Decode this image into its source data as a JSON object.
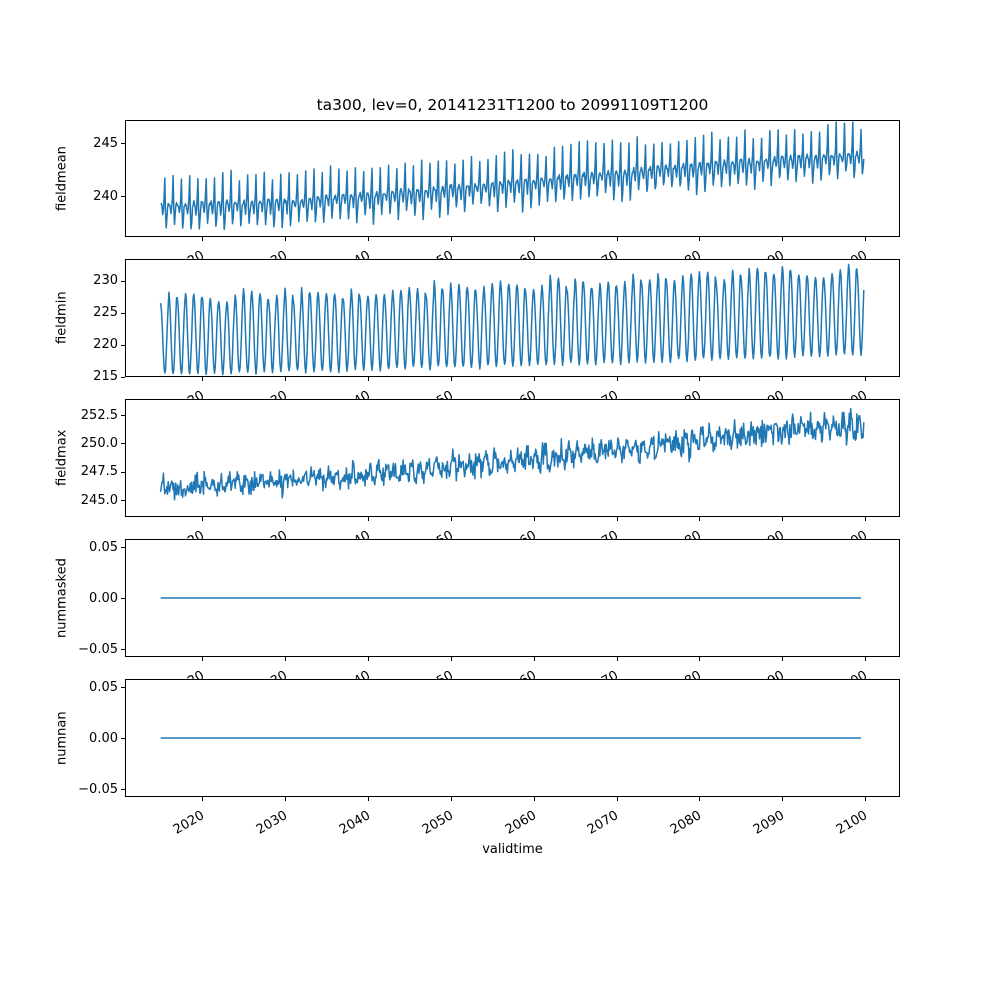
{
  "figure": {
    "title": "ta300, lev=0, 20141231T1200 to 20991109T1200",
    "background": "#ffffff",
    "line_color": "#1f77b4",
    "axis_color": "#000000"
  },
  "chart_data": [
    {
      "type": "line",
      "ylabel": "fieldmean",
      "ylim": [
        236.13,
        247.17
      ],
      "yticks": {
        "values": [
          240,
          245
        ],
        "labels": [
          "240",
          "245"
        ]
      },
      "series": {
        "name": "fieldmean",
        "color": "#1f77b4",
        "x_start": 2015.0,
        "x_end": 2099.86,
        "points_per_year": 12,
        "shape": "peakdip",
        "seed": 11,
        "noise": 0.45,
        "baseline_frac": 0.45,
        "anchors": [
          [
            2015,
            237.0,
            242.0
          ],
          [
            2030,
            237.3,
            242.4
          ],
          [
            2045,
            238.2,
            243.4
          ],
          [
            2060,
            239.2,
            244.5
          ],
          [
            2075,
            240.3,
            245.6
          ],
          [
            2090,
            241.3,
            246.4
          ],
          [
            2100,
            241.8,
            246.9
          ]
        ]
      }
    },
    {
      "type": "line",
      "ylabel": "fieldmin",
      "ylim": [
        214.95,
        233.39
      ],
      "yticks": {
        "values": [
          215,
          220,
          225,
          230
        ],
        "labels": [
          "215",
          "220",
          "225",
          "230"
        ]
      },
      "series": {
        "name": "fieldmin",
        "color": "#1f77b4",
        "x_start": 2015.0,
        "x_end": 2099.86,
        "points_per_year": 12,
        "shape": "sine",
        "seed": 23,
        "noise": 0.5,
        "anchors": [
          [
            2015,
            215.4,
            227.3
          ],
          [
            2030,
            215.9,
            227.9
          ],
          [
            2045,
            216.4,
            228.6
          ],
          [
            2060,
            216.9,
            229.4
          ],
          [
            2075,
            217.5,
            230.2
          ],
          [
            2090,
            218.2,
            231.3
          ],
          [
            2100,
            218.6,
            231.7
          ]
        ]
      }
    },
    {
      "type": "line",
      "ylabel": "fieldmax",
      "ylim": [
        243.5,
        253.91
      ],
      "yticks": {
        "values": [
          245.0,
          247.5,
          250.0,
          252.5
        ],
        "labels": [
          "245.0",
          "247.5",
          "250.0",
          "252.5"
        ]
      },
      "series": {
        "name": "fieldmax",
        "color": "#1f77b4",
        "x_start": 2015.0,
        "x_end": 2099.86,
        "points_per_year": 12,
        "shape": "noise",
        "seed": 37,
        "noise": 0.3,
        "anchors": [
          [
            2015,
            244.7,
            247.4
          ],
          [
            2030,
            245.2,
            248.1
          ],
          [
            2045,
            246.0,
            249.1
          ],
          [
            2060,
            247.0,
            250.3
          ],
          [
            2075,
            248.1,
            251.5
          ],
          [
            2090,
            249.4,
            252.9
          ],
          [
            2100,
            249.9,
            253.3
          ]
        ]
      }
    },
    {
      "type": "line",
      "ylabel": "nummasked",
      "ylim": [
        -0.0578,
        0.0578
      ],
      "yticks": {
        "values": [
          -0.05,
          0.0,
          0.05
        ],
        "labels": [
          "−0.05",
          "0.00",
          "0.05"
        ]
      },
      "series": {
        "name": "nummasked",
        "color": "#1f77b4",
        "x_start": 2015.0,
        "x_end": 2099.86,
        "points_per_year": 2,
        "shape": "flat",
        "seed": 5,
        "noise": 0,
        "anchors": [
          [
            2015,
            0,
            0
          ],
          [
            2100,
            0,
            0
          ]
        ]
      }
    },
    {
      "type": "line",
      "ylabel": "numnan",
      "ylim": [
        -0.0578,
        0.0578
      ],
      "yticks": {
        "values": [
          -0.05,
          0.0,
          0.05
        ],
        "labels": [
          "−0.05",
          "0.00",
          "0.05"
        ]
      },
      "series": {
        "name": "numnan",
        "color": "#1f77b4",
        "x_start": 2015.0,
        "x_end": 2099.86,
        "points_per_year": 2,
        "shape": "flat",
        "seed": 6,
        "noise": 0,
        "anchors": [
          [
            2015,
            0,
            0
          ],
          [
            2100,
            0,
            0
          ]
        ]
      }
    }
  ],
  "x_axis": {
    "label": "validtime",
    "xlim": [
      2010.7,
      2104.2
    ],
    "ticks": {
      "values": [
        2020,
        2030,
        2040,
        2050,
        2060,
        2070,
        2080,
        2090,
        2100
      ],
      "labels": [
        "2020",
        "2030",
        "2040",
        "2050",
        "2060",
        "2070",
        "2080",
        "2090",
        "2100"
      ]
    }
  }
}
